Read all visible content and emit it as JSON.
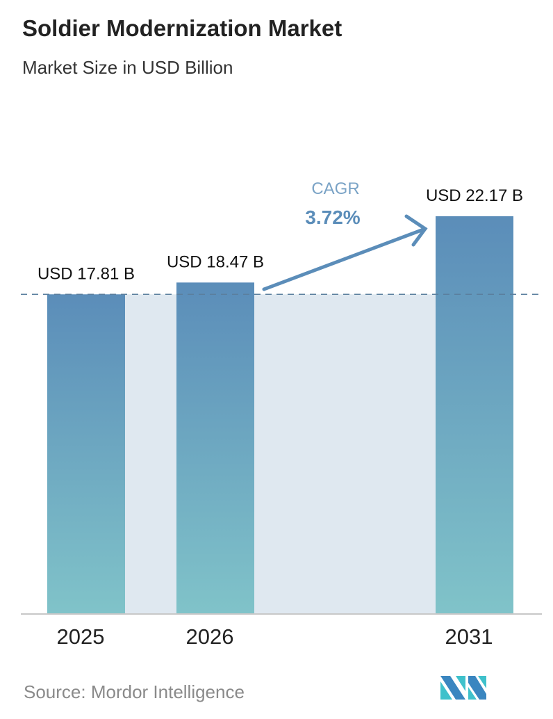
{
  "title": "Soldier Modernization Market",
  "subtitle": "Market Size in USD Billion",
  "source": "Source:  Mordor Intelligence",
  "logo_text": "Mordor Intelligence",
  "colors": {
    "bar_top": "#5b8db9",
    "bar_bottom": "#80c3c9",
    "band": "#dfe8f0",
    "cagr": "#5b8db9",
    "dashed": "#5b7f9e"
  },
  "chart_data": {
    "type": "bar",
    "title": "Soldier Modernization Market",
    "subtitle": "Market Size in USD Billion",
    "categories": [
      "2025",
      "2026",
      "2031"
    ],
    "values": [
      17.81,
      18.47,
      22.17
    ],
    "data_labels": [
      "USD 17.81 B",
      "USD 18.47 B",
      "USD 22.17 B"
    ],
    "annotation": {
      "label": "CAGR",
      "value": "3.72%"
    },
    "grid": false,
    "ylim": [
      0,
      22.17
    ]
  }
}
